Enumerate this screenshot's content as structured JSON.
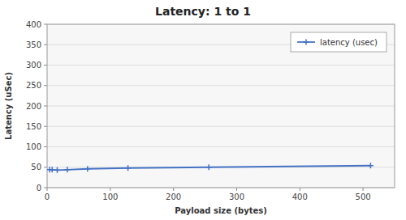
{
  "chart_data": {
    "type": "line",
    "title": "Latency: 1 to 1",
    "xlabel": "Payload size (bytes)",
    "ylabel": "Latency (uSec)",
    "x": [
      4,
      8,
      16,
      32,
      64,
      128,
      256,
      512
    ],
    "series": [
      {
        "name": "latency (usec)",
        "color": "#4472C4",
        "marker": "plus",
        "values": [
          44,
          44,
          43,
          44,
          46,
          48,
          50,
          54
        ]
      }
    ],
    "xlim": [
      0,
      550
    ],
    "ylim": [
      0,
      400
    ],
    "xticks": [
      0,
      100,
      200,
      300,
      400,
      500
    ],
    "yticks": [
      0,
      50,
      100,
      150,
      200,
      250,
      300,
      350,
      400
    ],
    "grid": "y",
    "legend": "upper right"
  }
}
